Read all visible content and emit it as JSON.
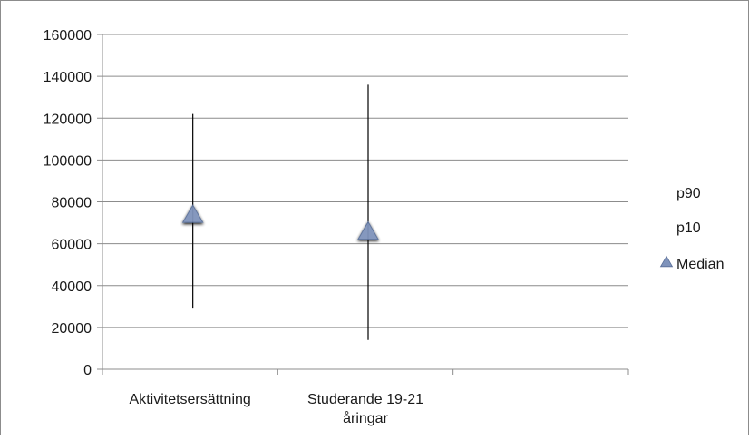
{
  "chart_data": {
    "type": "scatter",
    "title": "",
    "xlabel": "",
    "ylabel": "",
    "categories": [
      "Aktivitetsersättning",
      "Studerande 19-21 åringar"
    ],
    "category_lines": [
      [
        "Aktivitetsersättning"
      ],
      [
        "Studerande 19-21",
        "åringar"
      ]
    ],
    "series": [
      {
        "name": "p90",
        "values": [
          122000,
          136000
        ],
        "marker": "none"
      },
      {
        "name": "p10",
        "values": [
          29000,
          14000
        ],
        "marker": "none"
      },
      {
        "name": "Median",
        "values": [
          73000,
          65000
        ],
        "marker": "triangle"
      }
    ],
    "ylim": [
      0,
      160000
    ],
    "y_ticks": [
      "160000",
      "140000",
      "120000",
      "100000",
      "80000",
      "60000",
      "40000",
      "20000",
      "0"
    ],
    "grid": true,
    "legend": "right",
    "colors": {
      "marker": "#7f93bb",
      "marker_edge": "#5a6f98",
      "gridline": "#8c8c8c",
      "axis": "#8c8c8c",
      "range_line": "#000000"
    }
  }
}
